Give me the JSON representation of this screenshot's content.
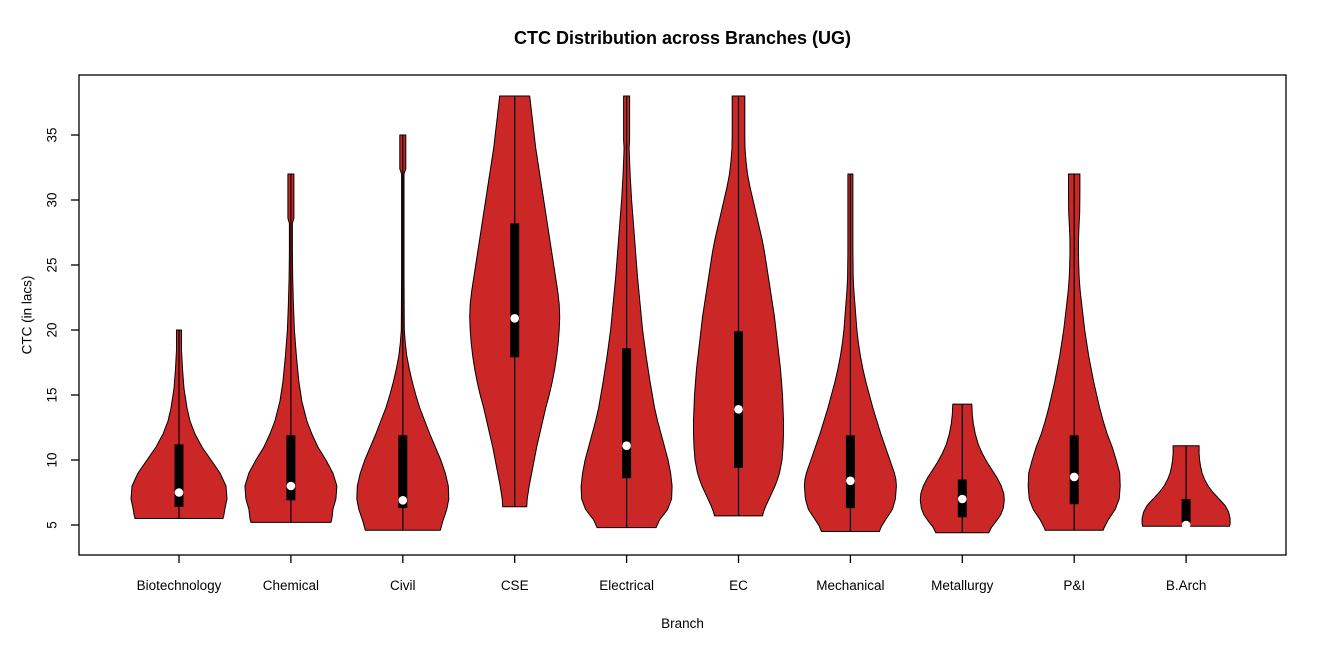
{
  "chart_data": {
    "type": "violin",
    "title": "CTC Distribution across Branches (UG)",
    "xlabel": "Branch",
    "ylabel": "CTC (in lacs)",
    "y_ticks": [
      5,
      10,
      15,
      20,
      25,
      30,
      35
    ],
    "y_axis_range": [
      2.7,
      39.6
    ],
    "grid": false,
    "legend": "none",
    "colors": {
      "violin_fill": "#CB2727",
      "outline": "#000000",
      "iqr_box": "#000000",
      "median_dot": "#FFFFFF",
      "background": "#FFFFFF",
      "text": "#000000"
    },
    "branches": [
      {
        "name": "Biotechnology",
        "min": 5.5,
        "max": 20,
        "q1": 6.4,
        "q3": 11.2,
        "median": 7.5,
        "bottom_notch": false,
        "profile": [
          [
            20,
            2.5
          ],
          [
            18.5,
            2.5
          ],
          [
            17,
            3.5
          ],
          [
            15.5,
            5
          ],
          [
            14,
            8
          ],
          [
            13,
            11
          ],
          [
            12,
            16
          ],
          [
            11,
            23
          ],
          [
            10,
            32
          ],
          [
            9,
            41
          ],
          [
            8,
            47
          ],
          [
            7,
            48
          ],
          [
            6.3,
            46
          ],
          [
            5.8,
            45
          ],
          [
            5.5,
            44
          ]
        ]
      },
      {
        "name": "Chemical",
        "min": 5.2,
        "max": 32,
        "q1": 6.9,
        "q3": 11.9,
        "median": 8,
        "bottom_notch": false,
        "profile": [
          [
            32,
            3
          ],
          [
            30,
            3
          ],
          [
            28.6,
            3
          ],
          [
            28.2,
            1.5
          ],
          [
            26,
            1.5
          ],
          [
            24,
            1.8
          ],
          [
            22,
            2.5
          ],
          [
            20,
            3.5
          ],
          [
            18,
            5.5
          ],
          [
            16,
            8
          ],
          [
            14.5,
            11
          ],
          [
            13,
            16
          ],
          [
            12,
            21
          ],
          [
            11,
            27
          ],
          [
            10,
            35
          ],
          [
            9,
            42
          ],
          [
            8,
            46
          ],
          [
            7,
            45
          ],
          [
            6.2,
            42
          ],
          [
            5.5,
            41
          ],
          [
            5.2,
            40
          ]
        ]
      },
      {
        "name": "Civil",
        "min": 4.6,
        "max": 35,
        "q1": 6.3,
        "q3": 11.9,
        "median": 6.9,
        "bottom_notch": false,
        "profile": [
          [
            35,
            3
          ],
          [
            33.5,
            3
          ],
          [
            32.4,
            3
          ],
          [
            32,
            1.2
          ],
          [
            28,
            1.2
          ],
          [
            24,
            1.2
          ],
          [
            20,
            1.5
          ],
          [
            19,
            2.5
          ],
          [
            18,
            4
          ],
          [
            17,
            6.5
          ],
          [
            16,
            9.5
          ],
          [
            15,
            13
          ],
          [
            14,
            17
          ],
          [
            13,
            22
          ],
          [
            12,
            27
          ],
          [
            11,
            32.5
          ],
          [
            10,
            38
          ],
          [
            9,
            42.5
          ],
          [
            8,
            45.5
          ],
          [
            7,
            46
          ],
          [
            6.2,
            44
          ],
          [
            5.3,
            40
          ],
          [
            4.6,
            37.5
          ]
        ]
      },
      {
        "name": "CSE",
        "min": 6.4,
        "max": 38,
        "q1": 17.9,
        "q3": 28.2,
        "median": 20.9,
        "bottom_notch": false,
        "profile": [
          [
            38,
            15
          ],
          [
            37,
            16.5
          ],
          [
            36,
            18
          ],
          [
            35,
            19.5
          ],
          [
            34,
            21
          ],
          [
            33,
            23
          ],
          [
            32,
            25
          ],
          [
            31,
            27
          ],
          [
            30,
            29
          ],
          [
            29,
            31
          ],
          [
            28,
            33
          ],
          [
            27,
            35
          ],
          [
            26,
            37
          ],
          [
            25,
            39
          ],
          [
            24,
            41
          ],
          [
            23,
            43
          ],
          [
            22,
            44.5
          ],
          [
            21,
            45
          ],
          [
            20,
            44.5
          ],
          [
            19,
            43.5
          ],
          [
            18,
            42
          ],
          [
            17,
            40
          ],
          [
            16,
            37.5
          ],
          [
            15,
            34.5
          ],
          [
            14,
            31
          ],
          [
            13,
            28
          ],
          [
            12,
            25
          ],
          [
            11,
            22
          ],
          [
            10,
            19.5
          ],
          [
            9,
            17
          ],
          [
            8,
            14.5
          ],
          [
            7,
            12.5
          ],
          [
            6.4,
            12
          ]
        ]
      },
      {
        "name": "Electrical",
        "min": 4.8,
        "max": 38,
        "q1": 8.6,
        "q3": 18.6,
        "median": 11.1,
        "bottom_notch": false,
        "profile": [
          [
            38,
            3
          ],
          [
            36,
            3
          ],
          [
            34.6,
            3
          ],
          [
            34,
            2.5
          ],
          [
            32,
            3.5
          ],
          [
            30,
            5
          ],
          [
            28,
            7
          ],
          [
            26,
            9
          ],
          [
            24,
            11
          ],
          [
            22,
            13.5
          ],
          [
            20,
            16
          ],
          [
            18,
            19.5
          ],
          [
            16,
            23.5
          ],
          [
            14,
            28
          ],
          [
            13,
            31
          ],
          [
            12,
            34.5
          ],
          [
            11,
            38
          ],
          [
            10,
            41.5
          ],
          [
            9,
            44
          ],
          [
            8,
            45.5
          ],
          [
            7,
            45
          ],
          [
            6.2,
            41
          ],
          [
            5.4,
            33
          ],
          [
            4.8,
            29.5
          ]
        ]
      },
      {
        "name": "EC",
        "min": 5.7,
        "max": 38,
        "q1": 9.4,
        "q3": 19.9,
        "median": 13.9,
        "bottom_notch": false,
        "profile": [
          [
            38,
            6.3
          ],
          [
            36.5,
            6.3
          ],
          [
            35,
            6.3
          ],
          [
            34,
            6.5
          ],
          [
            33,
            7.5
          ],
          [
            32,
            9
          ],
          [
            31,
            11.5
          ],
          [
            30,
            14.5
          ],
          [
            29,
            17.5
          ],
          [
            28,
            20.5
          ],
          [
            27,
            23.5
          ],
          [
            26,
            26
          ],
          [
            25,
            28
          ],
          [
            24,
            30
          ],
          [
            23,
            32
          ],
          [
            22,
            34
          ],
          [
            21,
            36
          ],
          [
            20,
            37.5
          ],
          [
            19,
            39
          ],
          [
            18,
            40.5
          ],
          [
            17,
            42
          ],
          [
            16,
            43
          ],
          [
            15,
            44
          ],
          [
            14,
            44.5
          ],
          [
            13,
            45
          ],
          [
            12,
            45
          ],
          [
            11,
            44.5
          ],
          [
            10,
            43.5
          ],
          [
            9,
            41
          ],
          [
            8.5,
            39
          ],
          [
            8,
            36.5
          ],
          [
            7.5,
            33.5
          ],
          [
            7,
            30.5
          ],
          [
            6.5,
            27.5
          ],
          [
            6,
            25
          ],
          [
            5.7,
            24
          ]
        ]
      },
      {
        "name": "Mechanical",
        "min": 4.5,
        "max": 32,
        "q1": 6.3,
        "q3": 11.9,
        "median": 8.4,
        "bottom_notch": false,
        "profile": [
          [
            32,
            2.5
          ],
          [
            30,
            2.5
          ],
          [
            28,
            2.5
          ],
          [
            26,
            2.5
          ],
          [
            24,
            2.8
          ],
          [
            23,
            3.5
          ],
          [
            22,
            4.5
          ],
          [
            21,
            5.5
          ],
          [
            20,
            6.5
          ],
          [
            19,
            8
          ],
          [
            18,
            10
          ],
          [
            17,
            12.5
          ],
          [
            16,
            15.5
          ],
          [
            15,
            19
          ],
          [
            14,
            22.5
          ],
          [
            13,
            26.5
          ],
          [
            12,
            30.5
          ],
          [
            11,
            35
          ],
          [
            10,
            39.5
          ],
          [
            9,
            44
          ],
          [
            8.5,
            45.5
          ],
          [
            8,
            46
          ],
          [
            7,
            45
          ],
          [
            6.2,
            42
          ],
          [
            5.5,
            36
          ],
          [
            4.9,
            31
          ],
          [
            4.5,
            29
          ]
        ]
      },
      {
        "name": "Metallurgy",
        "min": 4.4,
        "max": 14.3,
        "q1": 5.6,
        "q3": 8.5,
        "median": 7,
        "bottom_notch": false,
        "profile": [
          [
            14.3,
            9.5
          ],
          [
            13.5,
            10
          ],
          [
            12.8,
            11
          ],
          [
            12,
            13
          ],
          [
            11.2,
            16
          ],
          [
            10.5,
            20
          ],
          [
            9.8,
            25
          ],
          [
            9.2,
            30
          ],
          [
            8.6,
            35
          ],
          [
            8,
            39
          ],
          [
            7.4,
            41.5
          ],
          [
            6.9,
            42
          ],
          [
            6.3,
            41
          ],
          [
            5.8,
            38.5
          ],
          [
            5.3,
            34
          ],
          [
            4.8,
            29
          ],
          [
            4.4,
            26.5
          ]
        ]
      },
      {
        "name": "P&I",
        "min": 4.6,
        "max": 32,
        "q1": 6.6,
        "q3": 11.9,
        "median": 8.7,
        "bottom_notch": false,
        "profile": [
          [
            32,
            5.7
          ],
          [
            30.5,
            5.7
          ],
          [
            29,
            5.5
          ],
          [
            28,
            4.8
          ],
          [
            27,
            4.3
          ],
          [
            26,
            4.2
          ],
          [
            25,
            4.5
          ],
          [
            24,
            5
          ],
          [
            23,
            6
          ],
          [
            22,
            7.5
          ],
          [
            21,
            9
          ],
          [
            20,
            10.5
          ],
          [
            19,
            12.5
          ],
          [
            18,
            14.5
          ],
          [
            17,
            17
          ],
          [
            16,
            19.5
          ],
          [
            15,
            22.5
          ],
          [
            14,
            25.5
          ],
          [
            13,
            29
          ],
          [
            12,
            33
          ],
          [
            11,
            38
          ],
          [
            10,
            42
          ],
          [
            9,
            45.5
          ],
          [
            8,
            46
          ],
          [
            7,
            45
          ],
          [
            6.2,
            41
          ],
          [
            5.4,
            34
          ],
          [
            4.8,
            30
          ],
          [
            4.6,
            29
          ]
        ]
      },
      {
        "name": "B.Arch",
        "min": 4.9,
        "max": 11.1,
        "q1": 5.2,
        "q3": 7.0,
        "median": 5.0,
        "bottom_notch": true,
        "profile": [
          [
            11.1,
            13
          ],
          [
            10.5,
            13
          ],
          [
            10,
            13.5
          ],
          [
            9.5,
            14.5
          ],
          [
            9,
            16
          ],
          [
            8.5,
            18.5
          ],
          [
            8,
            22
          ],
          [
            7.5,
            27
          ],
          [
            7,
            33
          ],
          [
            6.5,
            39
          ],
          [
            6,
            42.5
          ],
          [
            5.5,
            44
          ],
          [
            5.1,
            44
          ],
          [
            4.9,
            43.5
          ]
        ]
      }
    ]
  }
}
